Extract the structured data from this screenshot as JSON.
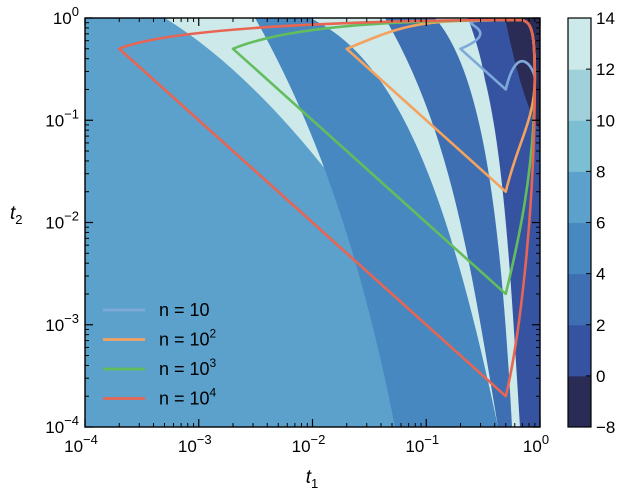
{
  "chart_data": {
    "type": "contour",
    "x_scale": "log",
    "y_scale": "log",
    "xlim": [
      0.0001,
      1
    ],
    "ylim": [
      0.0001,
      1
    ],
    "xlabel": {
      "base": "t",
      "sub": "1"
    },
    "ylabel": {
      "base": "t",
      "sub": "2"
    },
    "x_ticks": [
      0.0001,
      0.001,
      0.01,
      0.1,
      1
    ],
    "y_ticks": [
      0.0001,
      0.001,
      0.01,
      0.1,
      1
    ],
    "x_tick_labels": [
      {
        "base": "10",
        "exp": "−4"
      },
      {
        "base": "10",
        "exp": "−3"
      },
      {
        "base": "10",
        "exp": "−2"
      },
      {
        "base": "10",
        "exp": "−1"
      },
      {
        "base": "10",
        "exp": "0"
      }
    ],
    "y_tick_labels": [
      {
        "base": "10",
        "exp": "−4"
      },
      {
        "base": "10",
        "exp": "−3"
      },
      {
        "base": "10",
        "exp": "−2"
      },
      {
        "base": "10",
        "exp": "−1"
      },
      {
        "base": "10",
        "exp": "0"
      }
    ],
    "colorbar": {
      "range": [
        -8,
        14
      ],
      "tick_values": [
        -8,
        0,
        2,
        4,
        6,
        8,
        10,
        12,
        14
      ],
      "tick_labels": [
        "−8",
        "0",
        "2",
        "4",
        "6",
        "8",
        "10",
        "12",
        "14"
      ],
      "levels": [
        -8,
        0,
        2,
        4,
        6,
        8,
        10,
        12,
        14
      ],
      "level_colors": [
        "#2a2c55",
        "#3653a2",
        "#3d6fb2",
        "#4788c0",
        "#5ba1cb",
        "#7dbfd2",
        "#a0d1da",
        "#cde9ea"
      ]
    },
    "contour_band_colors": [
      "#cde9ea",
      "#a0d1da",
      "#7dbfd2",
      "#5ba1cb",
      "#4788c0",
      "#3d6fb2",
      "#3653a2",
      "#2a2c55"
    ],
    "region_vertex": [
      0.5,
      0.5
    ],
    "series": [
      {
        "name": "n = 10",
        "label": {
          "base": "n = 10",
          "exp": ""
        },
        "color": "#7ea9d9",
        "x_range": [
          0.2,
          0.9
        ],
        "y_low": 0.2
      },
      {
        "name": "n = 10^2",
        "label": {
          "base": "n = 10",
          "exp": "2"
        },
        "color": "#f3a25f",
        "x_range": [
          0.02,
          0.9
        ],
        "y_low": 0.02
      },
      {
        "name": "n = 10^3",
        "label": {
          "base": "n = 10",
          "exp": "3"
        },
        "color": "#63bd5d",
        "x_range": [
          0.002,
          0.9
        ],
        "y_low": 0.002
      },
      {
        "name": "n = 10^4",
        "label": {
          "base": "n = 10",
          "exp": "4"
        },
        "color": "#e86453",
        "x_range": [
          0.0002,
          0.9
        ],
        "y_low": 0.0002
      }
    ],
    "legend_position": "lower-left",
    "grid": false
  }
}
